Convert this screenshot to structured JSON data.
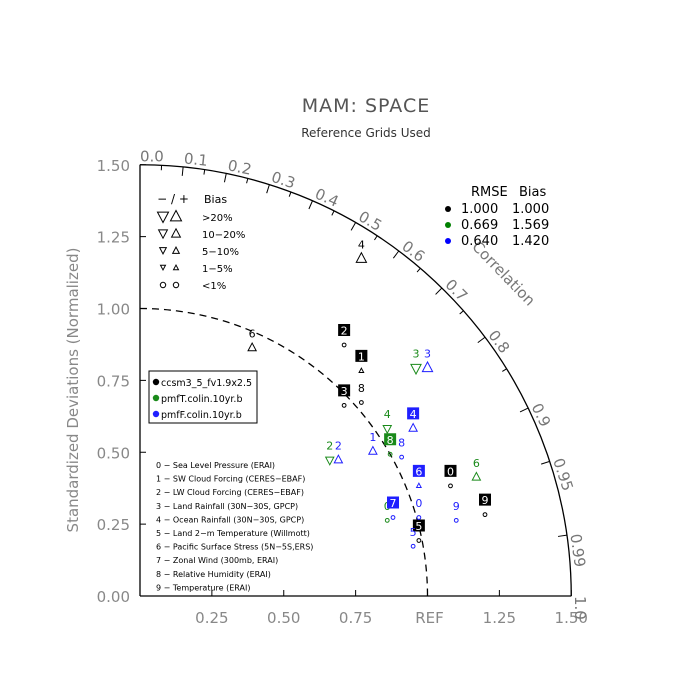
{
  "chart_data": {
    "type": "scatter",
    "subtype": "taylor-diagram",
    "title": "MAM: SPACE",
    "subtitle": "Reference Grids Used",
    "ylabel": "Standardized Deviations (Normalized)",
    "arc_label": "Correlation",
    "reference_label": "REF",
    "std_ticks": [
      "0.25",
      "0.50",
      "0.75",
      "1.25",
      "1.50"
    ],
    "std_tick_values": [
      0.25,
      0.5,
      0.75,
      1.25,
      1.5
    ],
    "y_ticks": [
      "0.00",
      "0.25",
      "0.50",
      "0.75",
      "1.00",
      "1.25",
      "1.50"
    ],
    "y_tick_values": [
      0,
      0.25,
      0.5,
      0.75,
      1.0,
      1.25,
      1.5
    ],
    "corr_ticks": [
      {
        "label": "0.0",
        "value": 0.0
      },
      {
        "label": "0.1",
        "value": 0.1
      },
      {
        "label": "0.2",
        "value": 0.2
      },
      {
        "label": "0.3",
        "value": 0.3
      },
      {
        "label": "0.4",
        "value": 0.4
      },
      {
        "label": "0.5",
        "value": 0.5
      },
      {
        "label": "0.6",
        "value": 0.6
      },
      {
        "label": "0.7",
        "value": 0.7
      },
      {
        "label": "0.8",
        "value": 0.8
      },
      {
        "label": "0.9",
        "value": 0.9
      },
      {
        "label": "0.95",
        "value": 0.95
      },
      {
        "label": "0.99",
        "value": 0.99
      },
      {
        "label": "1.0",
        "value": 1.0
      }
    ],
    "bias_legend": {
      "header_signs": "− / +",
      "header_label": "Bias",
      "rows": [
        {
          "label": ">20%",
          "size": 10
        },
        {
          "label": "10−20%",
          "size": 8
        },
        {
          "label": "5−10%",
          "size": 6
        },
        {
          "label": "1−5%",
          "size": 4.5
        },
        {
          "label": "<1%",
          "size": 3.5,
          "circle": true
        }
      ]
    },
    "stats_legend": {
      "header_rmse": "RMSE",
      "header_bias": "Bias",
      "rows": [
        {
          "color": "#000000",
          "rmse": "1.000",
          "bias": "1.000"
        },
        {
          "color": "#008000",
          "rmse": "0.669",
          "bias": "1.569"
        },
        {
          "color": "#0000ff",
          "rmse": "0.640",
          "bias": "1.420"
        }
      ]
    },
    "series": [
      {
        "name": "ccsm3_5_fv1.9x2.5",
        "color": "#000000"
      },
      {
        "name": "pmfT.colin.10yr.b",
        "color": "#1a8a1a"
      },
      {
        "name": "pmfF.colin.10yr.b",
        "color": "#1f1fff"
      }
    ],
    "variables": [
      "0 − Sea Level Pressure (ERAI)",
      "1 − SW Cloud Forcing (CERES−EBAF)",
      "2 − LW Cloud Forcing (CERES−EBAF)",
      "3 − Land Rainfall (30N−30S, GPCP)",
      "4 − Ocean Rainfall (30N−30S, GPCP)",
      "5 − Land 2−m Temperature (Willmott)",
      "6 − Pacific Surface Stress (5N−5S,ERS)",
      "7 − Zonal Wind (300mb, ERAI)",
      "8 − Relative Humidity (ERAI)",
      "9 − Temperature (ERAI)"
    ],
    "points": [
      {
        "s": 0,
        "n": "0",
        "x": 1.08,
        "y": 0.39,
        "m": "circle",
        "ms": 3.5
      },
      {
        "s": 0,
        "n": "1",
        "x": 0.77,
        "y": 0.79,
        "m": "up",
        "ms": 4.5
      },
      {
        "s": 0,
        "n": "2",
        "x": 0.71,
        "y": 0.88,
        "m": "circle",
        "ms": 3.5
      },
      {
        "s": 0,
        "n": "3",
        "x": 0.71,
        "y": 0.67,
        "m": "circle",
        "ms": 3.5
      },
      {
        "s": 0,
        "n": "4",
        "x": 0.77,
        "y": 1.18,
        "m": "up",
        "ms": 10,
        "nobox": true
      },
      {
        "s": 0,
        "n": "5",
        "x": 0.97,
        "y": 0.2,
        "m": "circle",
        "ms": 3.5
      },
      {
        "s": 0,
        "n": "6",
        "x": 0.39,
        "y": 0.87,
        "m": "up",
        "ms": 8,
        "nobox": true
      },
      {
        "s": 0,
        "n": "8",
        "x": 0.77,
        "y": 0.68,
        "m": "circle",
        "ms": 3.5,
        "nobox": true
      },
      {
        "s": 0,
        "n": "9",
        "x": 1.2,
        "y": 0.29,
        "m": "circle",
        "ms": 3.5
      },
      {
        "s": 1,
        "n": "0",
        "x": 0.86,
        "y": 0.27,
        "m": "circle",
        "ms": 3.5
      },
      {
        "s": 1,
        "n": "2",
        "x": 0.66,
        "y": 0.48,
        "m": "down",
        "ms": 8
      },
      {
        "s": 1,
        "n": "3",
        "x": 0.96,
        "y": 0.8,
        "m": "down",
        "ms": 10
      },
      {
        "s": 1,
        "n": "4",
        "x": 0.86,
        "y": 0.59,
        "m": "down",
        "ms": 8
      },
      {
        "s": 1,
        "n": "6",
        "x": 1.17,
        "y": 0.42,
        "m": "up",
        "ms": 8
      },
      {
        "s": 1,
        "n": "8",
        "x": 0.87,
        "y": 0.5,
        "m": "circle",
        "ms": 3.5,
        "box": true
      },
      {
        "s": 2,
        "n": "0",
        "x": 0.97,
        "y": 0.28,
        "m": "circle",
        "ms": 3.5
      },
      {
        "s": 2,
        "n": "1",
        "x": 0.81,
        "y": 0.51,
        "m": "up",
        "ms": 8
      },
      {
        "s": 2,
        "n": "2",
        "x": 0.69,
        "y": 0.48,
        "m": "up",
        "ms": 8
      },
      {
        "s": 2,
        "n": "3",
        "x": 1.0,
        "y": 0.8,
        "m": "up",
        "ms": 10
      },
      {
        "s": 2,
        "n": "4",
        "x": 0.95,
        "y": 0.59,
        "m": "up",
        "ms": 8,
        "box": true
      },
      {
        "s": 2,
        "n": "5",
        "x": 0.95,
        "y": 0.18,
        "m": "circle",
        "ms": 3.5
      },
      {
        "s": 2,
        "n": "6",
        "x": 0.97,
        "y": 0.39,
        "m": "up",
        "ms": 4.5,
        "box": true
      },
      {
        "s": 2,
        "n": "7",
        "x": 0.88,
        "y": 0.28,
        "m": "circle",
        "ms": 3.5,
        "box": true
      },
      {
        "s": 2,
        "n": "8",
        "x": 0.91,
        "y": 0.49,
        "m": "circle",
        "ms": 3.5
      },
      {
        "s": 2,
        "n": "9",
        "x": 1.1,
        "y": 0.27,
        "m": "circle",
        "ms": 3.5
      }
    ]
  }
}
